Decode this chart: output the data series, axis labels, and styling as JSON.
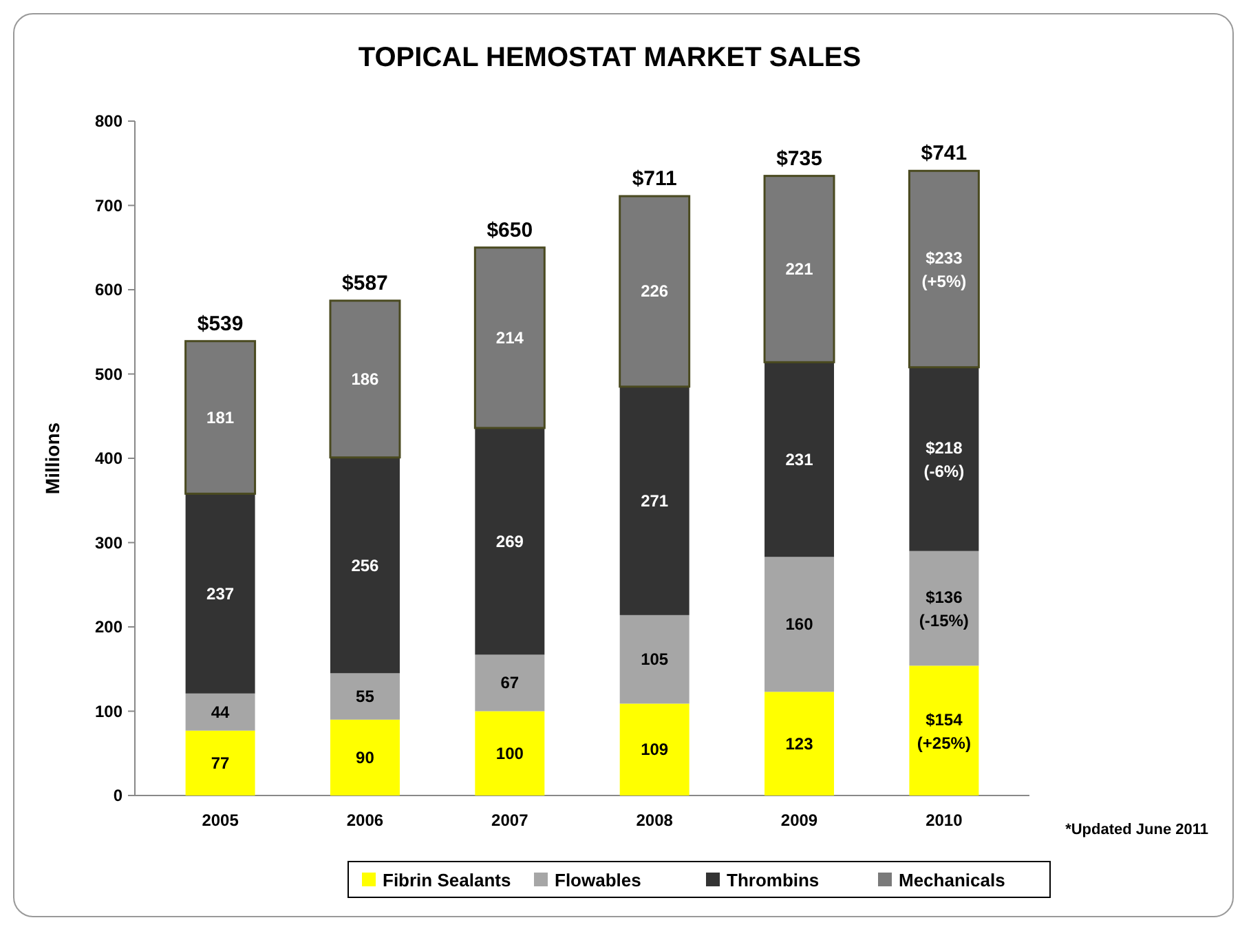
{
  "chart_data": {
    "type": "bar",
    "title": "TOPICAL HEMOSTAT MARKET SALES",
    "ylabel": "Millions",
    "categories": [
      "2005",
      "2006",
      "2007",
      "2008",
      "2009",
      "2010"
    ],
    "stacked": true,
    "ylim": [
      0,
      800
    ],
    "yticks": [
      0,
      100,
      200,
      300,
      400,
      500,
      600,
      700,
      800
    ],
    "grid": false,
    "legend": "bottom",
    "series": [
      {
        "name": "Fibrin Sealants",
        "color": "#ffff00",
        "values": [
          77,
          90,
          100,
          109,
          123,
          154
        ],
        "value_labels": [
          "77",
          "90",
          "100",
          "109",
          "123",
          "$154 (+25%)"
        ]
      },
      {
        "name": "Flowables",
        "color": "#a6a6a6",
        "values": [
          44,
          55,
          67,
          105,
          160,
          136
        ],
        "value_labels": [
          "44",
          "55",
          "67",
          "105",
          "160",
          "$136 (-15%)"
        ]
      },
      {
        "name": "Thrombins",
        "color": "#333333",
        "values": [
          237,
          256,
          269,
          271,
          231,
          218
        ],
        "value_labels": [
          "237",
          "256",
          "269",
          "271",
          "231",
          "$218 (-6%)"
        ]
      },
      {
        "name": "Mechanicals",
        "color": "#7a7a7a",
        "values": [
          181,
          186,
          214,
          226,
          221,
          233
        ],
        "value_labels": [
          "181",
          "186",
          "214",
          "226",
          "221",
          "$233 (+5%)"
        ]
      }
    ],
    "totals": [
      "$539",
      "$587",
      "$650",
      "$711",
      "$735",
      "$741"
    ],
    "annotations": [
      "*Updated June 2011"
    ]
  }
}
